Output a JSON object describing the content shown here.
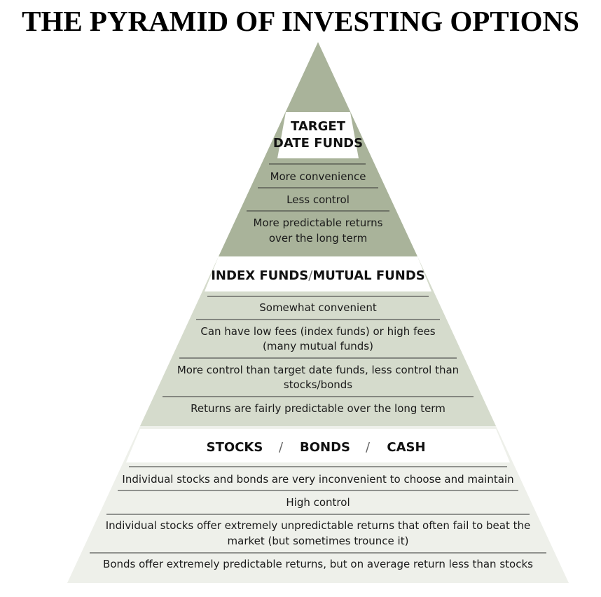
{
  "title": "THE PYRAMID OF INVESTING OPTIONS",
  "colors": {
    "tier_top": "#a9b39a",
    "tier_middle": "#d5dbcc",
    "tier_bottom": "#eef0ea",
    "header_band": "#ffffff"
  },
  "tiers": [
    {
      "heading_lines": [
        "TARGET",
        "DATE FUNDS"
      ],
      "items": [
        [
          "More convenience"
        ],
        [
          "Less control"
        ],
        [
          "More predictable returns",
          "over the long term"
        ]
      ]
    },
    {
      "heading_parts": [
        "INDEX FUNDS",
        "/",
        "MUTUAL FUNDS"
      ],
      "items": [
        [
          "Somewhat convenient"
        ],
        [
          "Can have low fees (index funds) or high fees",
          "(many mutual funds)"
        ],
        [
          "More control than target date funds, less control than",
          "stocks/bonds"
        ],
        [
          "Returns are fairly predictable over the long term"
        ]
      ]
    },
    {
      "heading_parts": [
        "STOCKS",
        "/",
        "BONDS",
        "/",
        "CASH"
      ],
      "items": [
        [
          "Individual stocks and bonds are very inconvenient to choose and maintain"
        ],
        [
          "High control"
        ],
        [
          "Individual stocks offer extremely unpredictable returns that often fail to beat the",
          "market (but sometimes trounce it)"
        ],
        [
          "Bonds offer extremely predictable returns, but on average return less than stocks"
        ]
      ]
    }
  ]
}
